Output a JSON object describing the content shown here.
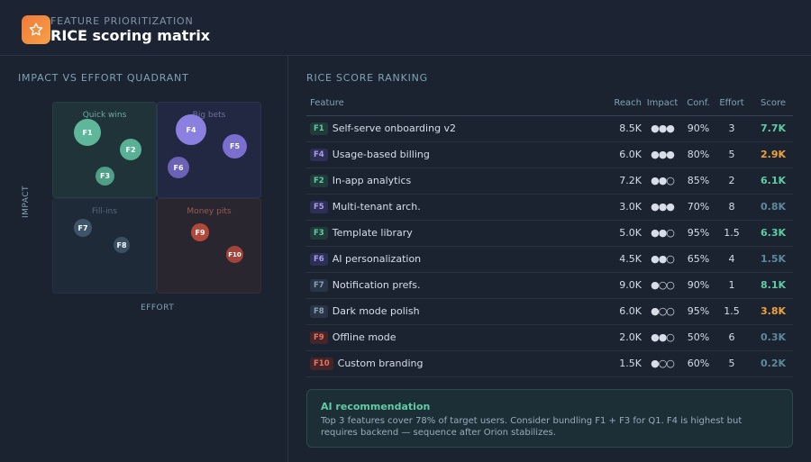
{
  "header": {
    "eyebrow": "FEATURE PRIORITIZATION",
    "title": "RICE scoring matrix",
    "logo_icon": "star-icon",
    "logo_color": "#f5873b"
  },
  "quadrant": {
    "section_title": "IMPACT VS EFFORT QUADRANT",
    "labels": {
      "quick_wins": "Quick wins",
      "big_bets": "Big bets",
      "fill_ins": "Fill-ins",
      "money_pits": "Money pits"
    },
    "x_axis": "EFFORT",
    "y_axis": "IMPACT",
    "colors": {
      "quick_wins": "#5fcca6",
      "big_bets": "#8b7fe0",
      "fill_ins": "#3e5468",
      "money_pits": "#b2483a"
    }
  },
  "ranking": {
    "section_title": "RICE SCORE RANKING",
    "columns": {
      "feature": "Feature",
      "reach": "Reach",
      "impact": "Impact",
      "conf": "Conf.",
      "effort": "Effort",
      "score": "Score"
    },
    "rows": [
      {
        "id": "F1",
        "name": "Self-serve onboarding v2",
        "reach": "8.5K",
        "impact": "●●●",
        "conf": "90%",
        "effort": "3",
        "score": "7.7K",
        "tag": "green",
        "score_color": "#5fcca6"
      },
      {
        "id": "F4",
        "name": "Usage-based billing",
        "reach": "6.0K",
        "impact": "●●●",
        "conf": "80%",
        "effort": "5",
        "score": "2.9K",
        "tag": "purple",
        "score_color": "#f0a23a"
      },
      {
        "id": "F2",
        "name": "In-app analytics",
        "reach": "7.2K",
        "impact": "●●○",
        "conf": "85%",
        "effort": "2",
        "score": "6.1K",
        "tag": "green",
        "score_color": "#5fcca6"
      },
      {
        "id": "F5",
        "name": "Multi-tenant arch.",
        "reach": "3.0K",
        "impact": "●●●",
        "conf": "70%",
        "effort": "8",
        "score": "0.8K",
        "tag": "purple",
        "score_color": "#5d8a9a"
      },
      {
        "id": "F3",
        "name": "Template library",
        "reach": "5.0K",
        "impact": "●●○",
        "conf": "95%",
        "effort": "1.5",
        "score": "6.3K",
        "tag": "green",
        "score_color": "#5fcca6"
      },
      {
        "id": "F6",
        "name": "AI personalization",
        "reach": "4.5K",
        "impact": "●●○",
        "conf": "65%",
        "effort": "4",
        "score": "1.5K",
        "tag": "purple",
        "score_color": "#5d8a9a"
      },
      {
        "id": "F7",
        "name": "Notification prefs.",
        "reach": "9.0K",
        "impact": "●○○",
        "conf": "90%",
        "effort": "1",
        "score": "8.1K",
        "tag": "gray",
        "score_color": "#5fcca6"
      },
      {
        "id": "F8",
        "name": "Dark mode polish",
        "reach": "6.0K",
        "impact": "●○○",
        "conf": "95%",
        "effort": "1.5",
        "score": "3.8K",
        "tag": "gray",
        "score_color": "#f0a23a"
      },
      {
        "id": "F9",
        "name": "Offline mode",
        "reach": "2.0K",
        "impact": "●●○",
        "conf": "50%",
        "effort": "6",
        "score": "0.3K",
        "tag": "red",
        "score_color": "#5d8a9a"
      },
      {
        "id": "F10",
        "name": "Custom branding",
        "reach": "1.5K",
        "impact": "●○○",
        "conf": "60%",
        "effort": "5",
        "score": "0.2K",
        "tag": "red",
        "score_color": "#5d8a9a"
      }
    ]
  },
  "recommendation": {
    "title": "AI recommendation",
    "text": "Top 3 features cover 78% of target users. Consider bundling F1 + F3 for Q1. F4 is highest but requires backend — sequence after Orion stabilizes."
  }
}
